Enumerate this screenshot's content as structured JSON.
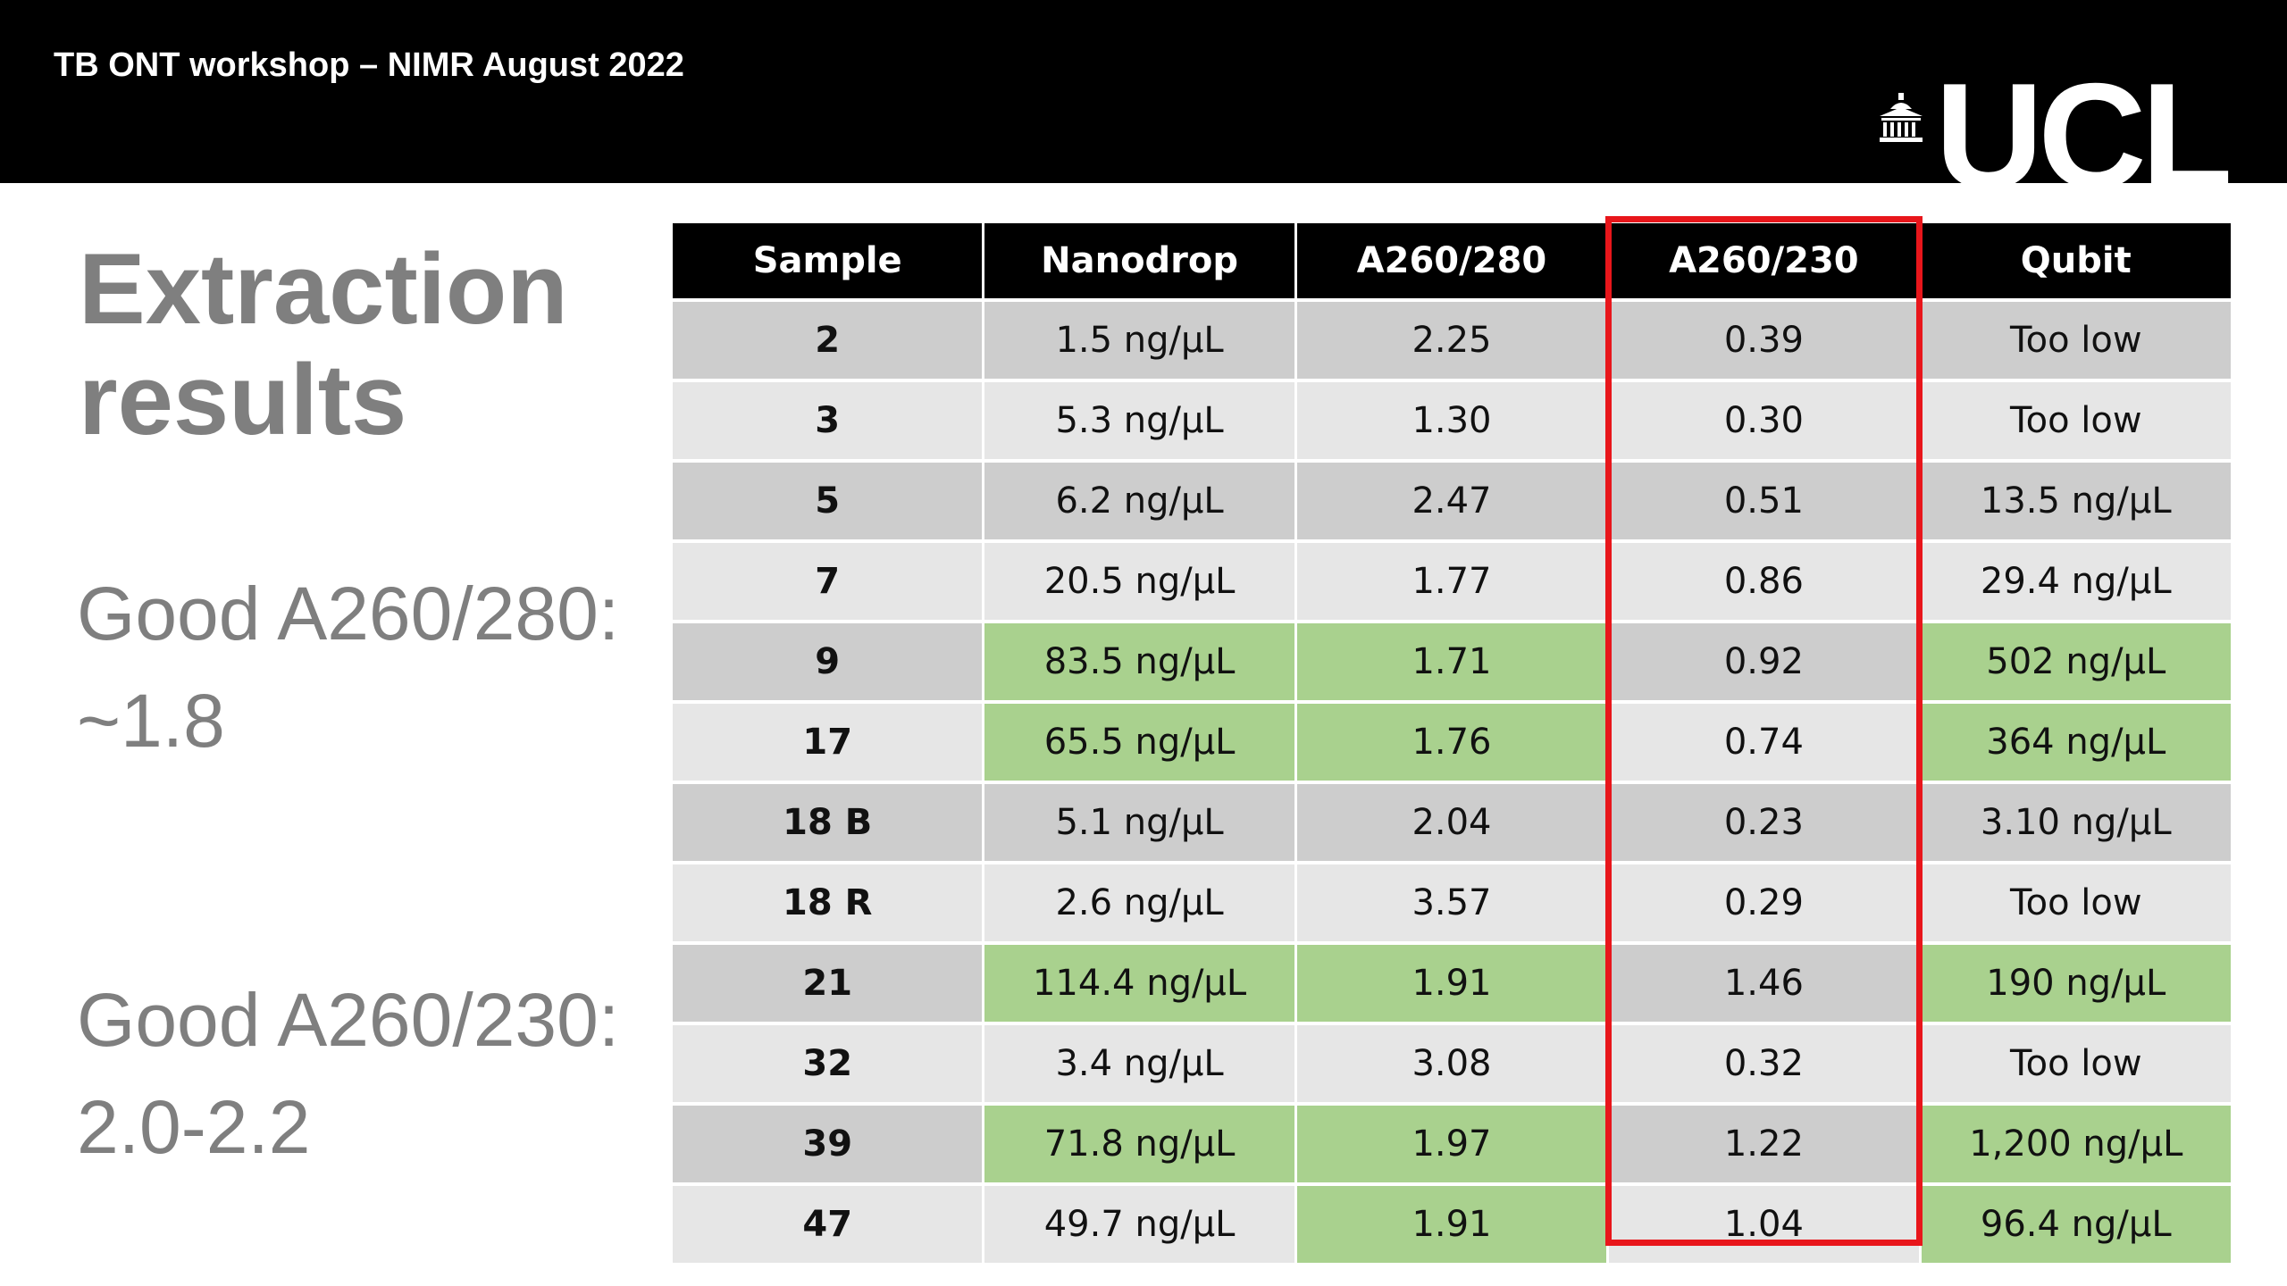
{
  "header": {
    "title": "TB ONT workshop – NIMR August 2022",
    "logo_text": "UCL"
  },
  "slide": {
    "title": "Extraction results",
    "note1_label": "Good A260/280:",
    "note1_value": "~1.8",
    "note2_label": "Good A260/230:",
    "note2_value": "2.0-2.2"
  },
  "colors": {
    "header_bg": "#000000",
    "good_cell": "#a9d18e",
    "row_dark": "#cdcdcd",
    "row_light": "#e6e6e6",
    "highlight_border": "#e8161b",
    "text_grey": "#7f7f7f"
  },
  "icons": {
    "logo": "ucl-portico-icon"
  },
  "table": {
    "columns": [
      "Sample",
      "Nanodrop",
      "A260/280",
      "A260/230",
      "Qubit"
    ],
    "rows": [
      {
        "sample": "2",
        "nanodrop": "1.5 ng/µL",
        "a260_280": "2.25",
        "a260_230": "0.39",
        "qubit": "Too low",
        "good": []
      },
      {
        "sample": "3",
        "nanodrop": "5.3 ng/µL",
        "a260_280": "1.30",
        "a260_230": "0.30",
        "qubit": "Too low",
        "good": []
      },
      {
        "sample": "5",
        "nanodrop": "6.2 ng/µL",
        "a260_280": "2.47",
        "a260_230": "0.51",
        "qubit": "13.5 ng/µL",
        "good": []
      },
      {
        "sample": "7",
        "nanodrop": "20.5 ng/µL",
        "a260_280": "1.77",
        "a260_230": "0.86",
        "qubit": "29.4 ng/µL",
        "good": []
      },
      {
        "sample": "9",
        "nanodrop": "83.5 ng/µL",
        "a260_280": "1.71",
        "a260_230": "0.92",
        "qubit": "502 ng/µL",
        "good": [
          "nanodrop",
          "a260_280",
          "qubit"
        ]
      },
      {
        "sample": "17",
        "nanodrop": "65.5 ng/µL",
        "a260_280": "1.76",
        "a260_230": "0.74",
        "qubit": "364 ng/µL",
        "good": [
          "nanodrop",
          "a260_280",
          "qubit"
        ]
      },
      {
        "sample": "18 B",
        "nanodrop": "5.1 ng/µL",
        "a260_280": "2.04",
        "a260_230": "0.23",
        "qubit": "3.10 ng/µL",
        "good": []
      },
      {
        "sample": "18 R",
        "nanodrop": "2.6 ng/µL",
        "a260_280": "3.57",
        "a260_230": "0.29",
        "qubit": "Too low",
        "good": []
      },
      {
        "sample": "21",
        "nanodrop": "114.4 ng/µL",
        "a260_280": "1.91",
        "a260_230": "1.46",
        "qubit": "190 ng/µL",
        "good": [
          "nanodrop",
          "a260_280",
          "qubit"
        ]
      },
      {
        "sample": "32",
        "nanodrop": "3.4 ng/µL",
        "a260_280": "3.08",
        "a260_230": "0.32",
        "qubit": "Too low",
        "good": []
      },
      {
        "sample": "39",
        "nanodrop": "71.8 ng/µL",
        "a260_280": "1.97",
        "a260_230": "1.22",
        "qubit": "1,200 ng/µL",
        "good": [
          "nanodrop",
          "a260_280",
          "qubit"
        ]
      },
      {
        "sample": "47",
        "nanodrop": "49.7 ng/µL",
        "a260_280": "1.91",
        "a260_230": "1.04",
        "qubit": "96.4 ng/µL",
        "good": [
          "a260_280",
          "qubit"
        ]
      }
    ]
  }
}
